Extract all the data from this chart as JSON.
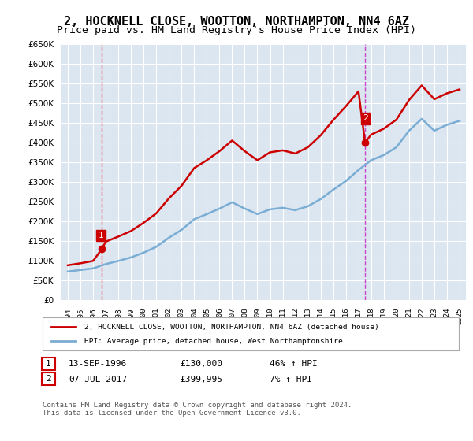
{
  "title": "2, HOCKNELL CLOSE, WOOTTON, NORTHAMPTON, NN4 6AZ",
  "subtitle": "Price paid vs. HM Land Registry's House Price Index (HPI)",
  "title_fontsize": 11,
  "subtitle_fontsize": 9.5,
  "bg_color": "#ffffff",
  "plot_bg_color": "#dce6f1",
  "grid_color": "#ffffff",
  "sale1_date": 1996.71,
  "sale1_price": 130000,
  "sale2_date": 2017.52,
  "sale2_price": 399995,
  "hpi_color": "#7aadd4",
  "price_color": "#cc0000",
  "vline1_color": "#ff4444",
  "vline2_color": "#cc44cc",
  "legend_label1": "2, HOCKNELL CLOSE, WOOTTON, NORTHAMPTON, NN4 6AZ (detached house)",
  "legend_label2": "HPI: Average price, detached house, West Northamptonshire",
  "annotation1": "1",
  "annotation2": "2",
  "table_row1": [
    "1",
    "13-SEP-1996",
    "£130,000",
    "46% ↑ HPI"
  ],
  "table_row2": [
    "2",
    "07-JUL-2017",
    "£399,995",
    "7% ↑ HPI"
  ],
  "footer": "Contains HM Land Registry data © Crown copyright and database right 2024.\nThis data is licensed under the Open Government Licence v3.0.",
  "ylim": [
    0,
    650000
  ],
  "yticks": [
    0,
    50000,
    100000,
    150000,
    200000,
    250000,
    300000,
    350000,
    400000,
    450000,
    500000,
    550000,
    600000,
    650000
  ],
  "xlim_start": 1993.5,
  "xlim_end": 2025.5,
  "hpi_years": [
    1994,
    1995,
    1996,
    1997,
    1998,
    1999,
    2000,
    2001,
    2002,
    2003,
    2004,
    2005,
    2006,
    2007,
    2008,
    2009,
    2010,
    2011,
    2012,
    2013,
    2014,
    2015,
    2016,
    2017,
    2018,
    2019,
    2020,
    2021,
    2022,
    2023,
    2024,
    2025
  ],
  "hpi_values": [
    72000,
    76000,
    80000,
    91000,
    99000,
    108000,
    120000,
    135000,
    158000,
    178000,
    205000,
    218000,
    232000,
    248000,
    232000,
    218000,
    230000,
    234000,
    228000,
    238000,
    256000,
    280000,
    302000,
    330000,
    355000,
    368000,
    388000,
    430000,
    460000,
    430000,
    445000,
    455000
  ],
  "price_years": [
    1994.0,
    1995.0,
    1996.0,
    1996.71,
    1997.0,
    1998.0,
    1999.0,
    2000.0,
    2001.0,
    2002.0,
    2003.0,
    2004.0,
    2005.0,
    2006.0,
    2007.0,
    2008.0,
    2009.0,
    2010.0,
    2011.0,
    2012.0,
    2013.0,
    2014.0,
    2015.0,
    2016.0,
    2017.0,
    2017.52,
    2018.0,
    2019.0,
    2020.0,
    2021.0,
    2022.0,
    2023.0,
    2024.0,
    2025.0
  ],
  "price_values": [
    88000,
    93000,
    99000,
    130000,
    148000,
    161000,
    175000,
    196000,
    220000,
    258000,
    290000,
    335000,
    355000,
    378000,
    405000,
    378000,
    355000,
    375000,
    380000,
    372000,
    388000,
    418000,
    457000,
    492000,
    530000,
    399995,
    420000,
    435000,
    458000,
    508000,
    545000,
    510000,
    525000,
    535000
  ]
}
